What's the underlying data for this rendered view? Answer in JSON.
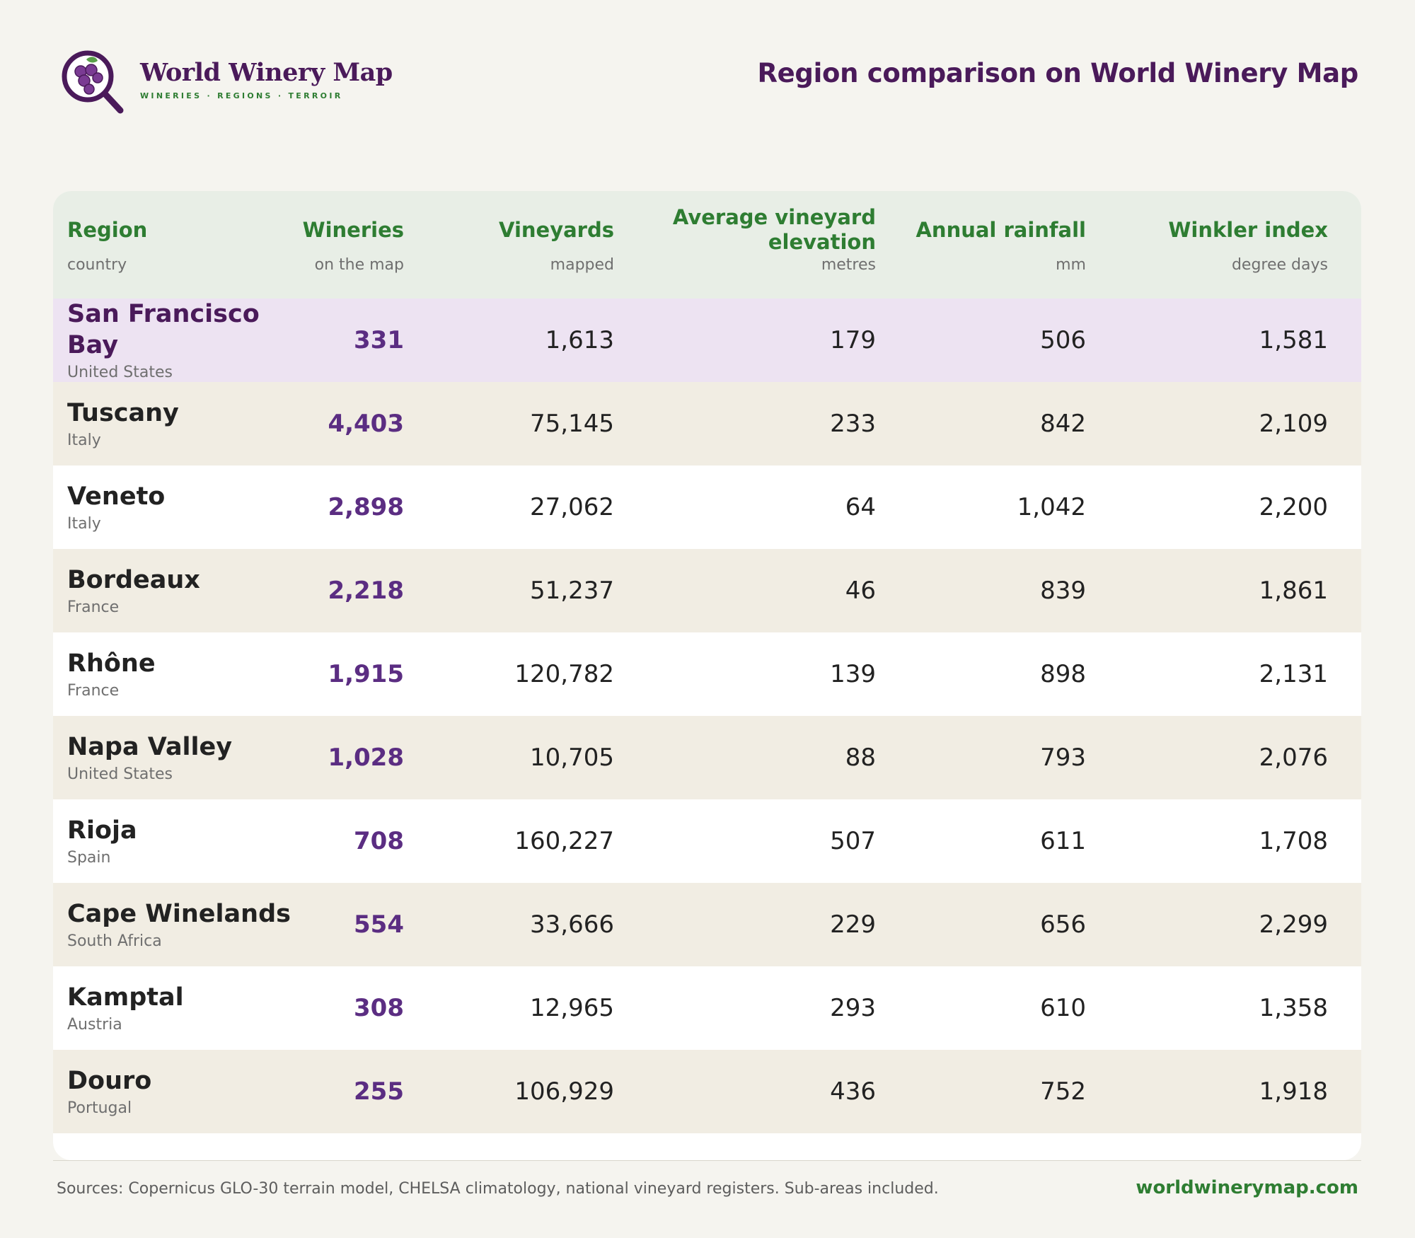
{
  "brand": {
    "name": "World Winery Map",
    "tagline": "WINERIES · REGIONS · TERROIR",
    "logo_icon": "grape-magnifier-icon",
    "colors": {
      "primary": "#4a1a5a",
      "accent": "#2e7d32",
      "numbers": "#5b2d82",
      "highlight_row": "#ede3f2",
      "alt_row": "#f1ede3",
      "header_bg": "#e8eee6"
    }
  },
  "page_title": "Region comparison on World Winery Map",
  "table": {
    "columns": [
      {
        "label": "Region",
        "sub": "country"
      },
      {
        "label": "Wineries",
        "sub": "on the map"
      },
      {
        "label": "Vineyards",
        "sub": "mapped"
      },
      {
        "label": "Average vineyard elevation",
        "sub": "metres"
      },
      {
        "label": "Annual rainfall",
        "sub": "mm"
      },
      {
        "label": "Winkler index",
        "sub": "degree days"
      }
    ],
    "rows": [
      {
        "region": "San Francisco Bay",
        "country": "United States",
        "wineries": "331",
        "vineyards": "1,613",
        "elevation": "179",
        "rainfall": "506",
        "winkler": "1,581"
      },
      {
        "region": "Tuscany",
        "country": "Italy",
        "wineries": "4,403",
        "vineyards": "75,145",
        "elevation": "233",
        "rainfall": "842",
        "winkler": "2,109"
      },
      {
        "region": "Veneto",
        "country": "Italy",
        "wineries": "2,898",
        "vineyards": "27,062",
        "elevation": "64",
        "rainfall": "1,042",
        "winkler": "2,200"
      },
      {
        "region": "Bordeaux",
        "country": "France",
        "wineries": "2,218",
        "vineyards": "51,237",
        "elevation": "46",
        "rainfall": "839",
        "winkler": "1,861"
      },
      {
        "region": "Rhône",
        "country": "France",
        "wineries": "1,915",
        "vineyards": "120,782",
        "elevation": "139",
        "rainfall": "898",
        "winkler": "2,131"
      },
      {
        "region": "Napa Valley",
        "country": "United States",
        "wineries": "1,028",
        "vineyards": "10,705",
        "elevation": "88",
        "rainfall": "793",
        "winkler": "2,076"
      },
      {
        "region": "Rioja",
        "country": "Spain",
        "wineries": "708",
        "vineyards": "160,227",
        "elevation": "507",
        "rainfall": "611",
        "winkler": "1,708"
      },
      {
        "region": "Cape Winelands",
        "country": "South Africa",
        "wineries": "554",
        "vineyards": "33,666",
        "elevation": "229",
        "rainfall": "656",
        "winkler": "2,299"
      },
      {
        "region": "Kamptal",
        "country": "Austria",
        "wineries": "308",
        "vineyards": "12,965",
        "elevation": "293",
        "rainfall": "610",
        "winkler": "1,358"
      },
      {
        "region": "Douro",
        "country": "Portugal",
        "wineries": "255",
        "vineyards": "106,929",
        "elevation": "436",
        "rainfall": "752",
        "winkler": "1,918"
      }
    ]
  },
  "footer": {
    "sources": "Sources: Copernicus GLO-30 terrain model, CHELSA climatology, national vineyard registers. Sub-areas included.",
    "site": "worldwinerymap.com"
  }
}
